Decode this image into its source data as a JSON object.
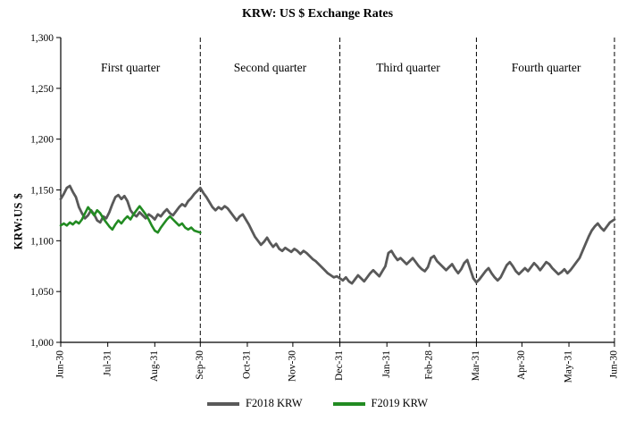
{
  "title": "KRW: US $ Exchange Rates",
  "legend": {
    "series1_label": "F2018 KRW",
    "series2_label": "F2019 KRW"
  },
  "chart_data": {
    "type": "line",
    "title": "KRW: US $ Exchange Rates",
    "xlabel": "",
    "ylabel": "KRW:US $",
    "ylim": [
      1000,
      1300
    ],
    "grid": "none",
    "legend_position": "bottom",
    "axis_color": "#000000",
    "yticks": [
      {
        "value": 1000,
        "label": "1,000"
      },
      {
        "value": 1050,
        "label": "1,050"
      },
      {
        "value": 1100,
        "label": "1,100"
      },
      {
        "value": 1150,
        "label": "1,150"
      },
      {
        "value": 1200,
        "label": "1,200"
      },
      {
        "value": 1250,
        "label": "1,250"
      },
      {
        "value": 1300,
        "label": "1,300"
      }
    ],
    "xlim_days": [
      0,
      365
    ],
    "xticks": [
      {
        "day": 0,
        "label": "Jun-30"
      },
      {
        "day": 31,
        "label": "Jul-31"
      },
      {
        "day": 62,
        "label": "Aug-31"
      },
      {
        "day": 92,
        "label": "Sep-30"
      },
      {
        "day": 123,
        "label": "Oct-31"
      },
      {
        "day": 153,
        "label": "Nov-30"
      },
      {
        "day": 184,
        "label": "Dec-31"
      },
      {
        "day": 215,
        "label": "Jan-31"
      },
      {
        "day": 243,
        "label": "Feb-28"
      },
      {
        "day": 274,
        "label": "Mar-31"
      },
      {
        "day": 304,
        "label": "Apr-30"
      },
      {
        "day": 335,
        "label": "May-31"
      },
      {
        "day": 365,
        "label": "Jun-30"
      }
    ],
    "quarter_separators_days": [
      92,
      184,
      274,
      365
    ],
    "quarter_labels": [
      {
        "label": "First quarter",
        "center_day": 46
      },
      {
        "label": "Second quarter",
        "center_day": 138
      },
      {
        "label": "Third quarter",
        "center_day": 229
      },
      {
        "label": "Fourth quarter",
        "center_day": 320
      }
    ],
    "series": [
      {
        "name": "F2018 KRW",
        "color": "#595959",
        "width": 2.8,
        "points": [
          [
            0,
            1141
          ],
          [
            2,
            1146
          ],
          [
            4,
            1152
          ],
          [
            6,
            1154
          ],
          [
            8,
            1148
          ],
          [
            10,
            1143
          ],
          [
            12,
            1133
          ],
          [
            14,
            1127
          ],
          [
            16,
            1122
          ],
          [
            18,
            1125
          ],
          [
            20,
            1130
          ],
          [
            22,
            1126
          ],
          [
            24,
            1120
          ],
          [
            26,
            1118
          ],
          [
            28,
            1124
          ],
          [
            30,
            1122
          ],
          [
            32,
            1128
          ],
          [
            34,
            1136
          ],
          [
            36,
            1143
          ],
          [
            38,
            1145
          ],
          [
            40,
            1141
          ],
          [
            42,
            1144
          ],
          [
            44,
            1139
          ],
          [
            46,
            1130
          ],
          [
            48,
            1126
          ],
          [
            50,
            1124
          ],
          [
            52,
            1128
          ],
          [
            54,
            1125
          ],
          [
            56,
            1122
          ],
          [
            58,
            1126
          ],
          [
            60,
            1124
          ],
          [
            62,
            1121
          ],
          [
            64,
            1126
          ],
          [
            66,
            1124
          ],
          [
            68,
            1128
          ],
          [
            70,
            1131
          ],
          [
            72,
            1127
          ],
          [
            74,
            1125
          ],
          [
            76,
            1129
          ],
          [
            78,
            1133
          ],
          [
            80,
            1136
          ],
          [
            82,
            1134
          ],
          [
            84,
            1139
          ],
          [
            86,
            1142
          ],
          [
            88,
            1146
          ],
          [
            90,
            1149
          ],
          [
            92,
            1152
          ],
          [
            94,
            1147
          ],
          [
            96,
            1143
          ],
          [
            98,
            1138
          ],
          [
            100,
            1133
          ],
          [
            102,
            1130
          ],
          [
            104,
            1133
          ],
          [
            106,
            1131
          ],
          [
            108,
            1134
          ],
          [
            110,
            1132
          ],
          [
            112,
            1128
          ],
          [
            114,
            1124
          ],
          [
            116,
            1120
          ],
          [
            118,
            1124
          ],
          [
            120,
            1126
          ],
          [
            122,
            1121
          ],
          [
            124,
            1116
          ],
          [
            126,
            1110
          ],
          [
            128,
            1104
          ],
          [
            130,
            1100
          ],
          [
            132,
            1096
          ],
          [
            134,
            1099
          ],
          [
            136,
            1103
          ],
          [
            138,
            1098
          ],
          [
            140,
            1094
          ],
          [
            142,
            1097
          ],
          [
            144,
            1092
          ],
          [
            146,
            1090
          ],
          [
            148,
            1093
          ],
          [
            150,
            1091
          ],
          [
            152,
            1089
          ],
          [
            154,
            1092
          ],
          [
            156,
            1090
          ],
          [
            158,
            1087
          ],
          [
            160,
            1090
          ],
          [
            162,
            1088
          ],
          [
            164,
            1085
          ],
          [
            166,
            1082
          ],
          [
            168,
            1080
          ],
          [
            170,
            1077
          ],
          [
            172,
            1074
          ],
          [
            174,
            1071
          ],
          [
            176,
            1068
          ],
          [
            178,
            1066
          ],
          [
            180,
            1064
          ],
          [
            182,
            1065
          ],
          [
            184,
            1063
          ],
          [
            186,
            1061
          ],
          [
            188,
            1064
          ],
          [
            190,
            1060
          ],
          [
            192,
            1058
          ],
          [
            194,
            1062
          ],
          [
            196,
            1066
          ],
          [
            198,
            1063
          ],
          [
            200,
            1060
          ],
          [
            202,
            1064
          ],
          [
            204,
            1068
          ],
          [
            206,
            1071
          ],
          [
            208,
            1068
          ],
          [
            210,
            1065
          ],
          [
            212,
            1070
          ],
          [
            214,
            1075
          ],
          [
            216,
            1088
          ],
          [
            218,
            1090
          ],
          [
            220,
            1085
          ],
          [
            222,
            1081
          ],
          [
            224,
            1083
          ],
          [
            226,
            1080
          ],
          [
            228,
            1077
          ],
          [
            230,
            1080
          ],
          [
            232,
            1083
          ],
          [
            234,
            1079
          ],
          [
            236,
            1075
          ],
          [
            238,
            1072
          ],
          [
            240,
            1070
          ],
          [
            242,
            1074
          ],
          [
            244,
            1083
          ],
          [
            246,
            1085
          ],
          [
            248,
            1080
          ],
          [
            250,
            1077
          ],
          [
            252,
            1074
          ],
          [
            254,
            1071
          ],
          [
            256,
            1074
          ],
          [
            258,
            1077
          ],
          [
            260,
            1072
          ],
          [
            262,
            1068
          ],
          [
            264,
            1072
          ],
          [
            266,
            1078
          ],
          [
            268,
            1081
          ],
          [
            270,
            1072
          ],
          [
            272,
            1063
          ],
          [
            274,
            1059
          ],
          [
            276,
            1062
          ],
          [
            278,
            1066
          ],
          [
            280,
            1070
          ],
          [
            282,
            1073
          ],
          [
            284,
            1068
          ],
          [
            286,
            1064
          ],
          [
            288,
            1061
          ],
          [
            290,
            1064
          ],
          [
            292,
            1070
          ],
          [
            294,
            1076
          ],
          [
            296,
            1079
          ],
          [
            298,
            1075
          ],
          [
            300,
            1070
          ],
          [
            302,
            1067
          ],
          [
            304,
            1070
          ],
          [
            306,
            1073
          ],
          [
            308,
            1070
          ],
          [
            310,
            1074
          ],
          [
            312,
            1078
          ],
          [
            314,
            1075
          ],
          [
            316,
            1071
          ],
          [
            318,
            1075
          ],
          [
            320,
            1079
          ],
          [
            322,
            1077
          ],
          [
            324,
            1073
          ],
          [
            326,
            1070
          ],
          [
            328,
            1067
          ],
          [
            330,
            1069
          ],
          [
            332,
            1072
          ],
          [
            334,
            1068
          ],
          [
            336,
            1071
          ],
          [
            338,
            1075
          ],
          [
            340,
            1079
          ],
          [
            342,
            1083
          ],
          [
            344,
            1090
          ],
          [
            346,
            1097
          ],
          [
            348,
            1104
          ],
          [
            350,
            1110
          ],
          [
            352,
            1114
          ],
          [
            354,
            1117
          ],
          [
            356,
            1113
          ],
          [
            358,
            1110
          ],
          [
            360,
            1114
          ],
          [
            362,
            1118
          ],
          [
            364,
            1120
          ],
          [
            365,
            1121
          ]
        ]
      },
      {
        "name": "F2019 KRW",
        "color": "#228b22",
        "width": 2.6,
        "points": [
          [
            0,
            1115
          ],
          [
            2,
            1117
          ],
          [
            4,
            1115
          ],
          [
            6,
            1118
          ],
          [
            8,
            1116
          ],
          [
            10,
            1119
          ],
          [
            12,
            1117
          ],
          [
            14,
            1121
          ],
          [
            16,
            1127
          ],
          [
            18,
            1133
          ],
          [
            20,
            1129
          ],
          [
            22,
            1125
          ],
          [
            24,
            1130
          ],
          [
            26,
            1127
          ],
          [
            28,
            1122
          ],
          [
            30,
            1118
          ],
          [
            32,
            1114
          ],
          [
            34,
            1111
          ],
          [
            36,
            1116
          ],
          [
            38,
            1120
          ],
          [
            40,
            1117
          ],
          [
            42,
            1121
          ],
          [
            44,
            1124
          ],
          [
            46,
            1121
          ],
          [
            48,
            1126
          ],
          [
            50,
            1130
          ],
          [
            52,
            1134
          ],
          [
            54,
            1130
          ],
          [
            56,
            1126
          ],
          [
            58,
            1121
          ],
          [
            60,
            1115
          ],
          [
            62,
            1110
          ],
          [
            64,
            1108
          ],
          [
            66,
            1113
          ],
          [
            68,
            1117
          ],
          [
            70,
            1121
          ],
          [
            72,
            1124
          ],
          [
            74,
            1121
          ],
          [
            76,
            1118
          ],
          [
            78,
            1115
          ],
          [
            80,
            1117
          ],
          [
            82,
            1113
          ],
          [
            84,
            1111
          ],
          [
            86,
            1113
          ],
          [
            88,
            1110
          ],
          [
            90,
            1109
          ],
          [
            92,
            1108
          ]
        ]
      }
    ]
  }
}
